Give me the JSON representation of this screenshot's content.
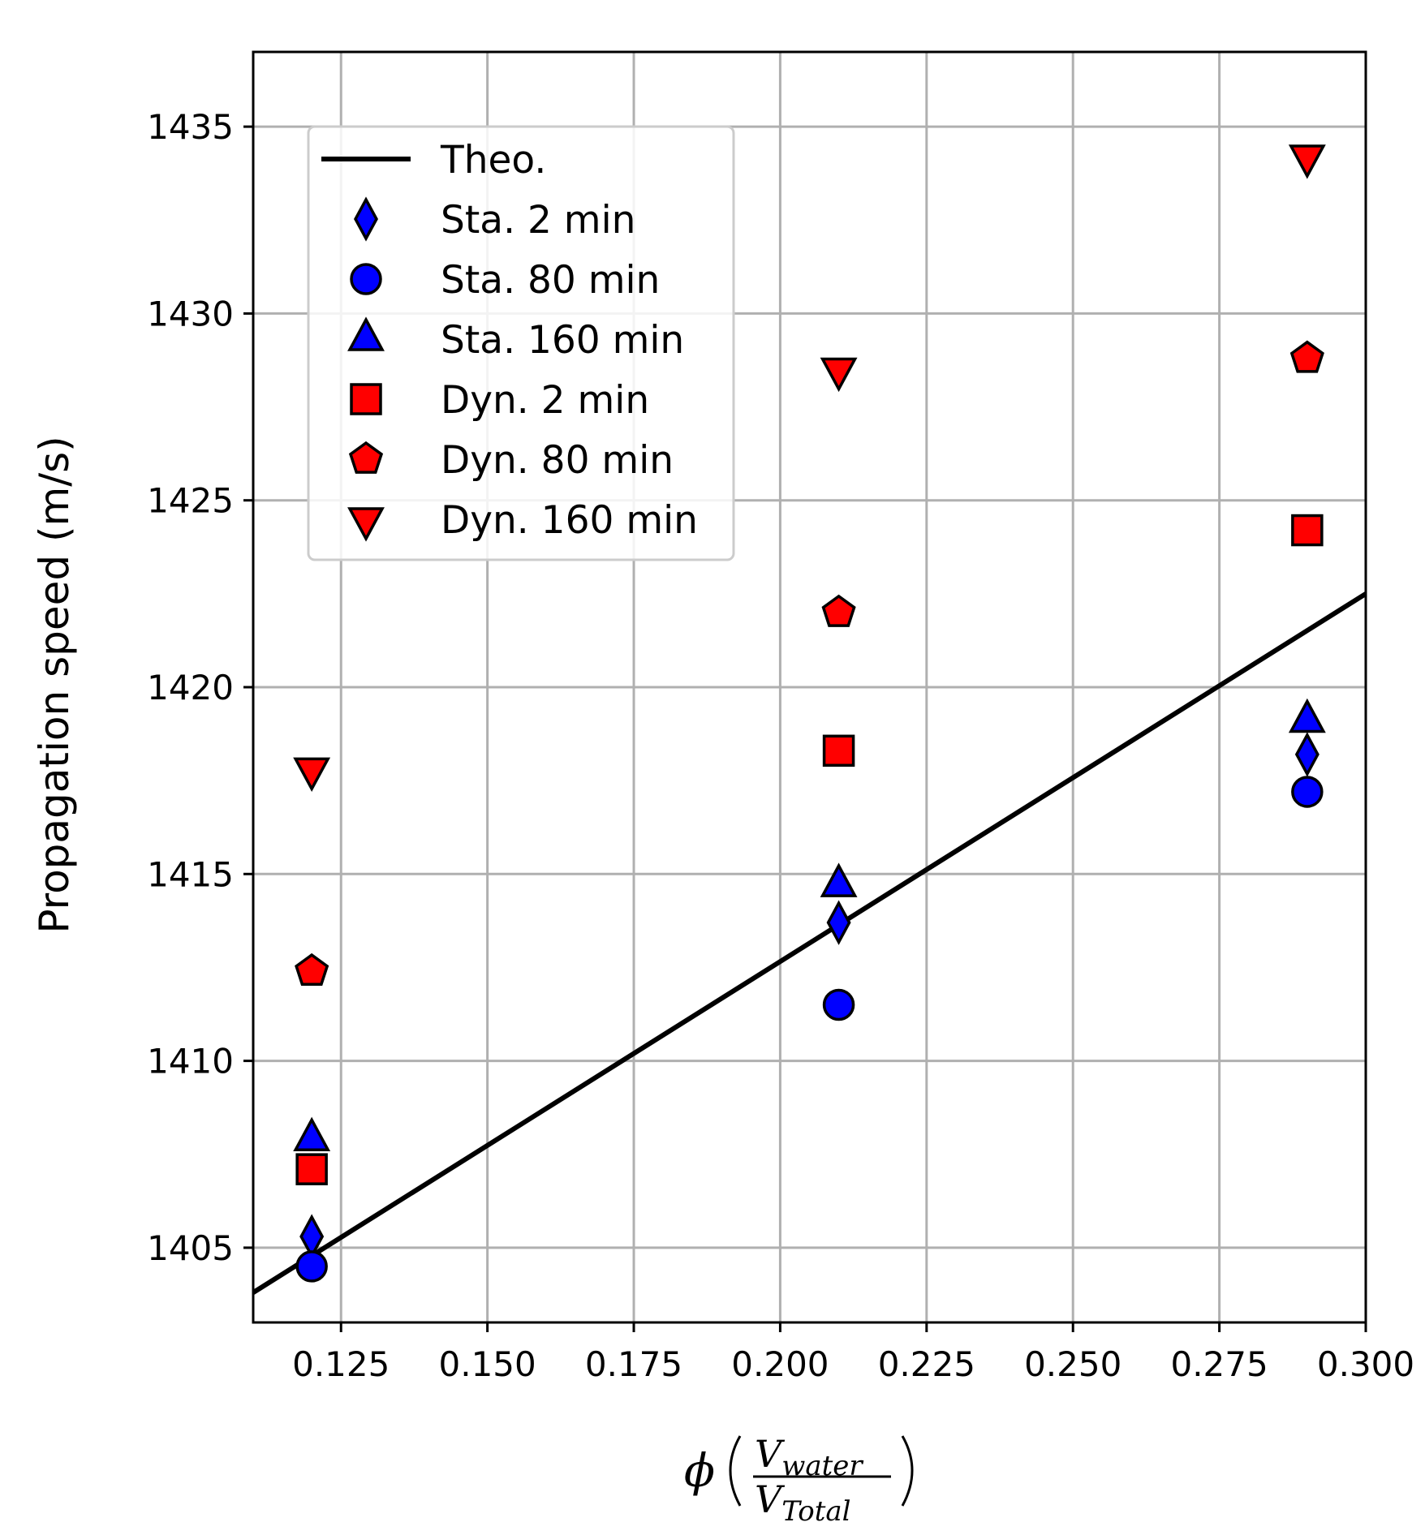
{
  "chart_data": {
    "type": "scatter",
    "title": "",
    "xlabel_symbol": "ϕ",
    "xlabel_numerator": "V",
    "xlabel_numerator_sub": "water",
    "xlabel_denominator": "V",
    "xlabel_denominator_sub": "Total",
    "ylabel": "Propagation speed (m/s)",
    "xlim": [
      0.11,
      0.3
    ],
    "ylim": [
      1403,
      1437
    ],
    "grid": true,
    "legend_position": "upper-left",
    "x_ticks": [
      0.125,
      0.15,
      0.175,
      0.2,
      0.225,
      0.25,
      0.275,
      0.3
    ],
    "x_tick_labels": [
      "0.125",
      "0.150",
      "0.175",
      "0.200",
      "0.225",
      "0.250",
      "0.275",
      "0.300"
    ],
    "y_ticks": [
      1405,
      1410,
      1415,
      1420,
      1425,
      1430,
      1435
    ],
    "y_tick_labels": [
      "1405",
      "1410",
      "1415",
      "1420",
      "1425",
      "1430",
      "1435"
    ],
    "line": {
      "name": "Theo.",
      "color": "#000000",
      "x": [
        0.11,
        0.3
      ],
      "y": [
        1403.8,
        1422.5
      ]
    },
    "series": [
      {
        "name": "Sta. 2 min",
        "marker": "diamond",
        "color": "#0000ff",
        "x": [
          0.12,
          0.21,
          0.29
        ],
        "y": [
          1405.3,
          1413.7,
          1418.2
        ]
      },
      {
        "name": "Sta. 80 min",
        "marker": "circle",
        "color": "#0000ff",
        "x": [
          0.12,
          0.21,
          0.29
        ],
        "y": [
          1404.5,
          1411.5,
          1417.2
        ]
      },
      {
        "name": "Sta. 160 min",
        "marker": "triangle-up",
        "color": "#0000ff",
        "x": [
          0.12,
          0.21,
          0.29
        ],
        "y": [
          1407.9,
          1414.7,
          1419.1
        ]
      },
      {
        "name": "Dyn. 2 min",
        "marker": "square",
        "color": "#ff0000",
        "x": [
          0.12,
          0.21,
          0.29
        ],
        "y": [
          1407.1,
          1418.3,
          1424.2
        ]
      },
      {
        "name": "Dyn. 80 min",
        "marker": "pentagon",
        "color": "#ff0000",
        "x": [
          0.12,
          0.21,
          0.29
        ],
        "y": [
          1412.4,
          1422.0,
          1428.8
        ]
      },
      {
        "name": "Dyn. 160 min",
        "marker": "triangle-down",
        "color": "#ff0000",
        "x": [
          0.12,
          0.21,
          0.29
        ],
        "y": [
          1417.8,
          1428.5,
          1434.2
        ]
      }
    ]
  }
}
